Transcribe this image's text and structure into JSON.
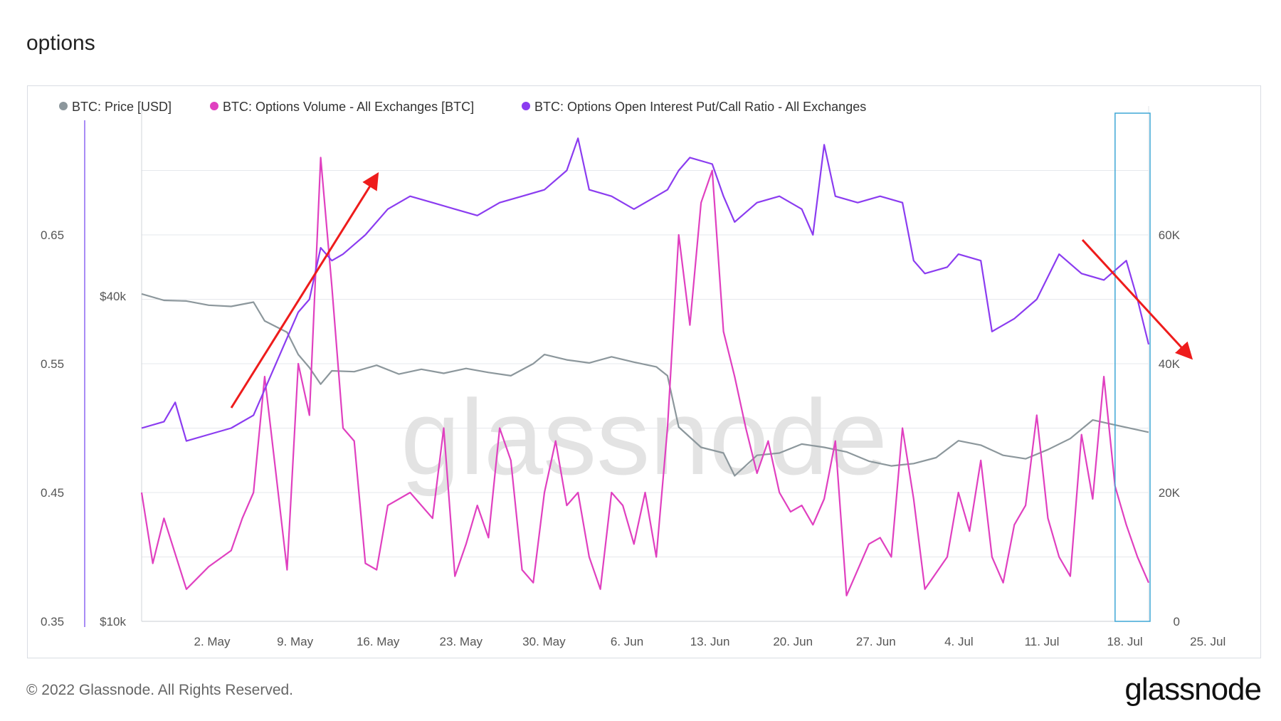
{
  "page": {
    "title": "options",
    "copyright": "© 2022 Glassnode. All Rights Reserved.",
    "logo": "glassnode",
    "watermark": "glassnode"
  },
  "colors": {
    "price": "#8c979c",
    "volume": "#e040c0",
    "ratio": "#8b3cf0",
    "annotation": "#ee1c1c",
    "highlight": "#3fa7d6",
    "grid": "#e6e8ec"
  },
  "chart_data": {
    "type": "line",
    "title": "options",
    "legend_position": "top-left",
    "x_ticks": [
      "2. May",
      "9. May",
      "16. May",
      "23. May",
      "30. May",
      "6. Jun",
      "13. Jun",
      "20. Jun",
      "27. Jun",
      "4. Jul",
      "11. Jul",
      "18. Jul",
      "25. Jul"
    ],
    "x_range": [
      "2022-04-26",
      "2022-07-25"
    ],
    "left_axis": {
      "series": "BTC: Options Open Interest Put/Call Ratio - All Exchanges",
      "range": [
        0.35,
        0.75
      ],
      "ticks": [
        "0.35",
        "0.45",
        "0.55",
        "0.65"
      ]
    },
    "price_axis": {
      "series": "BTC: Price [USD]",
      "scale": "log",
      "range": [
        10000,
        90000
      ],
      "ticks": [
        "$10k",
        "$40k"
      ]
    },
    "right_axis": {
      "series": "BTC: Options Volume - All Exchanges [BTC]",
      "range": [
        0,
        80000
      ],
      "ticks": [
        "0",
        "20K",
        "40K",
        "60K"
      ]
    },
    "grid": true,
    "series": [
      {
        "name": "BTC: Price [USD]",
        "axis": "price",
        "points": [
          [
            "2022-04-26",
            40400
          ],
          [
            "2022-04-28",
            39300
          ],
          [
            "2022-04-30",
            39200
          ],
          [
            "2022-05-02",
            38500
          ],
          [
            "2022-05-04",
            38300
          ],
          [
            "2022-05-06",
            39000
          ],
          [
            "2022-05-07",
            36000
          ],
          [
            "2022-05-09",
            34300
          ],
          [
            "2022-05-10",
            31200
          ],
          [
            "2022-05-11",
            29500
          ],
          [
            "2022-05-12",
            27500
          ],
          [
            "2022-05-13",
            29100
          ],
          [
            "2022-05-15",
            29000
          ],
          [
            "2022-05-17",
            29800
          ],
          [
            "2022-05-19",
            28700
          ],
          [
            "2022-05-21",
            29300
          ],
          [
            "2022-05-23",
            28800
          ],
          [
            "2022-05-25",
            29400
          ],
          [
            "2022-05-27",
            28900
          ],
          [
            "2022-05-29",
            28500
          ],
          [
            "2022-05-31",
            30000
          ],
          [
            "2022-06-01",
            31200
          ],
          [
            "2022-06-03",
            30500
          ],
          [
            "2022-06-05",
            30100
          ],
          [
            "2022-06-07",
            30900
          ],
          [
            "2022-06-09",
            30200
          ],
          [
            "2022-06-11",
            29600
          ],
          [
            "2022-06-12",
            28500
          ],
          [
            "2022-06-13",
            22900
          ],
          [
            "2022-06-15",
            21000
          ],
          [
            "2022-06-17",
            20500
          ],
          [
            "2022-06-18",
            18600
          ],
          [
            "2022-06-20",
            20300
          ],
          [
            "2022-06-22",
            20500
          ],
          [
            "2022-06-24",
            21300
          ],
          [
            "2022-06-26",
            21000
          ],
          [
            "2022-06-28",
            20600
          ],
          [
            "2022-06-30",
            19800
          ],
          [
            "2022-07-02",
            19400
          ],
          [
            "2022-07-04",
            19600
          ],
          [
            "2022-07-06",
            20100
          ],
          [
            "2022-07-08",
            21600
          ],
          [
            "2022-07-10",
            21200
          ],
          [
            "2022-07-12",
            20300
          ],
          [
            "2022-07-14",
            20000
          ],
          [
            "2022-07-16",
            20800
          ],
          [
            "2022-07-18",
            21800
          ],
          [
            "2022-07-20",
            23600
          ],
          [
            "2022-07-22",
            23100
          ],
          [
            "2022-07-25",
            22400
          ]
        ]
      },
      {
        "name": "BTC: Options Volume - All Exchanges [BTC]",
        "axis": "right",
        "points": [
          [
            "2022-04-26",
            20000
          ],
          [
            "2022-04-27",
            9000
          ],
          [
            "2022-04-28",
            16000
          ],
          [
            "2022-04-30",
            5000
          ],
          [
            "2022-05-02",
            8500
          ],
          [
            "2022-05-04",
            11000
          ],
          [
            "2022-05-05",
            16000
          ],
          [
            "2022-05-06",
            20000
          ],
          [
            "2022-05-07",
            38000
          ],
          [
            "2022-05-08",
            23000
          ],
          [
            "2022-05-09",
            8000
          ],
          [
            "2022-05-10",
            40000
          ],
          [
            "2022-05-11",
            32000
          ],
          [
            "2022-05-12",
            72000
          ],
          [
            "2022-05-13",
            52000
          ],
          [
            "2022-05-14",
            30000
          ],
          [
            "2022-05-15",
            28000
          ],
          [
            "2022-05-16",
            9000
          ],
          [
            "2022-05-17",
            8000
          ],
          [
            "2022-05-18",
            18000
          ],
          [
            "2022-05-20",
            20000
          ],
          [
            "2022-05-22",
            16000
          ],
          [
            "2022-05-23",
            30000
          ],
          [
            "2022-05-24",
            7000
          ],
          [
            "2022-05-25",
            12000
          ],
          [
            "2022-05-26",
            18000
          ],
          [
            "2022-05-27",
            13000
          ],
          [
            "2022-05-28",
            30000
          ],
          [
            "2022-05-29",
            25000
          ],
          [
            "2022-05-30",
            8000
          ],
          [
            "2022-05-31",
            6000
          ],
          [
            "2022-06-01",
            20000
          ],
          [
            "2022-06-02",
            28000
          ],
          [
            "2022-06-03",
            18000
          ],
          [
            "2022-06-04",
            20000
          ],
          [
            "2022-06-05",
            10000
          ],
          [
            "2022-06-06",
            5000
          ],
          [
            "2022-06-07",
            20000
          ],
          [
            "2022-06-08",
            18000
          ],
          [
            "2022-06-09",
            12000
          ],
          [
            "2022-06-10",
            20000
          ],
          [
            "2022-06-11",
            10000
          ],
          [
            "2022-06-12",
            30000
          ],
          [
            "2022-06-13",
            60000
          ],
          [
            "2022-06-14",
            46000
          ],
          [
            "2022-06-15",
            65000
          ],
          [
            "2022-06-16",
            70000
          ],
          [
            "2022-06-17",
            45000
          ],
          [
            "2022-06-18",
            38000
          ],
          [
            "2022-06-19",
            30000
          ],
          [
            "2022-06-20",
            23000
          ],
          [
            "2022-06-21",
            28000
          ],
          [
            "2022-06-22",
            20000
          ],
          [
            "2022-06-23",
            17000
          ],
          [
            "2022-06-24",
            18000
          ],
          [
            "2022-06-25",
            15000
          ],
          [
            "2022-06-26",
            19000
          ],
          [
            "2022-06-27",
            28000
          ],
          [
            "2022-06-28",
            4000
          ],
          [
            "2022-06-30",
            12000
          ],
          [
            "2022-07-01",
            13000
          ],
          [
            "2022-07-02",
            10000
          ],
          [
            "2022-07-03",
            30000
          ],
          [
            "2022-07-04",
            19000
          ],
          [
            "2022-07-05",
            5000
          ],
          [
            "2022-07-07",
            10000
          ],
          [
            "2022-07-08",
            20000
          ],
          [
            "2022-07-09",
            14000
          ],
          [
            "2022-07-10",
            25000
          ],
          [
            "2022-07-11",
            10000
          ],
          [
            "2022-07-12",
            6000
          ],
          [
            "2022-07-13",
            15000
          ],
          [
            "2022-07-14",
            18000
          ],
          [
            "2022-07-15",
            32000
          ],
          [
            "2022-07-16",
            16000
          ],
          [
            "2022-07-17",
            10000
          ],
          [
            "2022-07-18",
            7000
          ],
          [
            "2022-07-19",
            29000
          ],
          [
            "2022-07-20",
            19000
          ],
          [
            "2022-07-21",
            38000
          ],
          [
            "2022-07-22",
            21000
          ],
          [
            "2022-07-23",
            15000
          ],
          [
            "2022-07-24",
            10000
          ],
          [
            "2022-07-25",
            6000
          ]
        ]
      },
      {
        "name": "BTC: Options Open Interest Put/Call Ratio - All Exchanges",
        "axis": "left",
        "points": [
          [
            "2022-04-26",
            0.5
          ],
          [
            "2022-04-28",
            0.505
          ],
          [
            "2022-04-29",
            0.52
          ],
          [
            "2022-04-30",
            0.49
          ],
          [
            "2022-05-02",
            0.495
          ],
          [
            "2022-05-04",
            0.5
          ],
          [
            "2022-05-06",
            0.51
          ],
          [
            "2022-05-08",
            0.55
          ],
          [
            "2022-05-09",
            0.57
          ],
          [
            "2022-05-10",
            0.59
          ],
          [
            "2022-05-11",
            0.6
          ],
          [
            "2022-05-12",
            0.64
          ],
          [
            "2022-05-13",
            0.63
          ],
          [
            "2022-05-14",
            0.635
          ],
          [
            "2022-05-16",
            0.65
          ],
          [
            "2022-05-18",
            0.67
          ],
          [
            "2022-05-20",
            0.68
          ],
          [
            "2022-05-22",
            0.675
          ],
          [
            "2022-05-24",
            0.67
          ],
          [
            "2022-05-26",
            0.665
          ],
          [
            "2022-05-28",
            0.675
          ],
          [
            "2022-05-30",
            0.68
          ],
          [
            "2022-06-01",
            0.685
          ],
          [
            "2022-06-03",
            0.7
          ],
          [
            "2022-06-04",
            0.725
          ],
          [
            "2022-06-05",
            0.685
          ],
          [
            "2022-06-07",
            0.68
          ],
          [
            "2022-06-09",
            0.67
          ],
          [
            "2022-06-11",
            0.68
          ],
          [
            "2022-06-12",
            0.685
          ],
          [
            "2022-06-13",
            0.7
          ],
          [
            "2022-06-14",
            0.71
          ],
          [
            "2022-06-16",
            0.705
          ],
          [
            "2022-06-17",
            0.68
          ],
          [
            "2022-06-18",
            0.66
          ],
          [
            "2022-06-20",
            0.675
          ],
          [
            "2022-06-22",
            0.68
          ],
          [
            "2022-06-24",
            0.67
          ],
          [
            "2022-06-25",
            0.65
          ],
          [
            "2022-06-26",
            0.72
          ],
          [
            "2022-06-27",
            0.68
          ],
          [
            "2022-06-29",
            0.675
          ],
          [
            "2022-07-01",
            0.68
          ],
          [
            "2022-07-03",
            0.675
          ],
          [
            "2022-07-04",
            0.63
          ],
          [
            "2022-07-05",
            0.62
          ],
          [
            "2022-07-07",
            0.625
          ],
          [
            "2022-07-08",
            0.635
          ],
          [
            "2022-07-10",
            0.63
          ],
          [
            "2022-07-11",
            0.575
          ],
          [
            "2022-07-13",
            0.585
          ],
          [
            "2022-07-15",
            0.6
          ],
          [
            "2022-07-17",
            0.635
          ],
          [
            "2022-07-19",
            0.62
          ],
          [
            "2022-07-21",
            0.615
          ],
          [
            "2022-07-23",
            0.63
          ],
          [
            "2022-07-24",
            0.6
          ],
          [
            "2022-07-25",
            0.565
          ]
        ]
      }
    ]
  }
}
